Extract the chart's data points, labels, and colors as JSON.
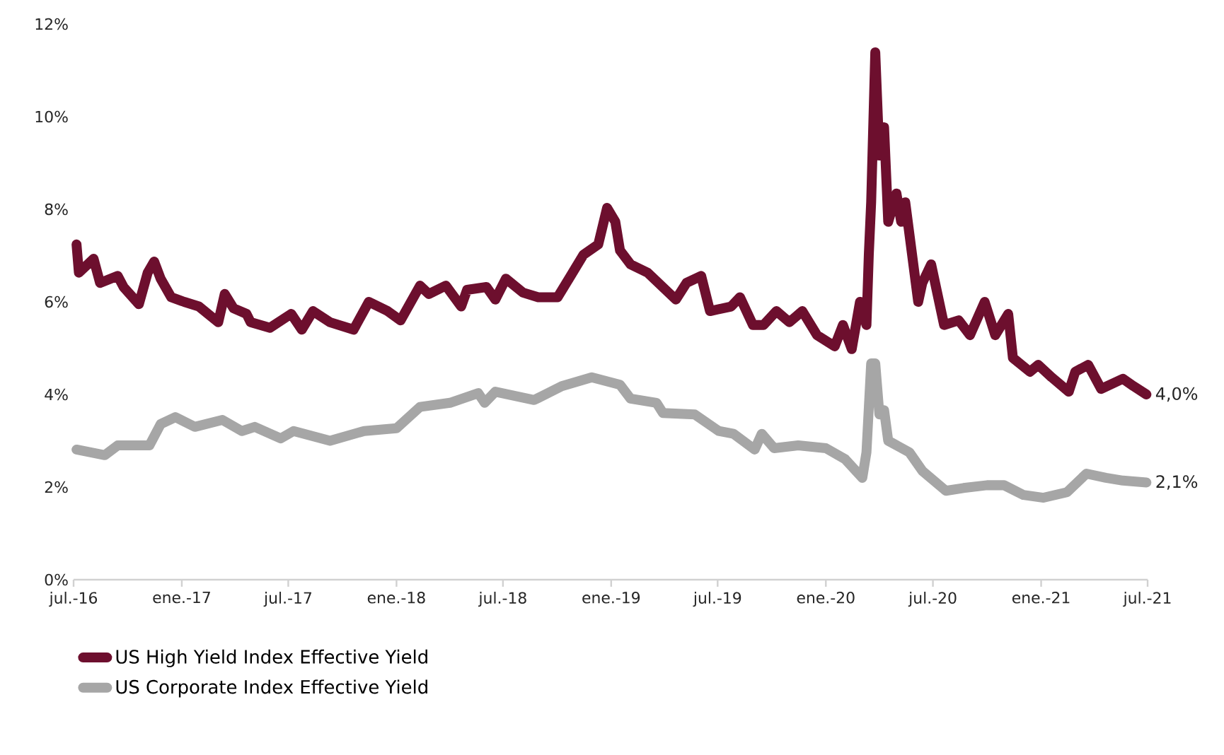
{
  "chart_data": {
    "type": "line",
    "xlim": [
      "2016-07-01",
      "2021-07-01"
    ],
    "xticks": [
      {
        "value": "2016-07-01",
        "label": "jul.-16"
      },
      {
        "value": "2017-01-01",
        "label": "ene.-17"
      },
      {
        "value": "2017-07-01",
        "label": "jul.-17"
      },
      {
        "value": "2018-01-01",
        "label": "ene.-18"
      },
      {
        "value": "2018-07-01",
        "label": "jul.-18"
      },
      {
        "value": "2019-01-01",
        "label": "ene.-19"
      },
      {
        "value": "2019-07-01",
        "label": "jul.-19"
      },
      {
        "value": "2020-01-01",
        "label": "ene.-20"
      },
      {
        "value": "2020-07-01",
        "label": "jul.-20"
      },
      {
        "value": "2021-01-01",
        "label": "ene.-21"
      },
      {
        "value": "2021-07-01",
        "label": "jul.-21"
      }
    ],
    "ylim": [
      0,
      12
    ],
    "yticks": [
      {
        "value": 0,
        "label": "0%"
      },
      {
        "value": 2,
        "label": "2%"
      },
      {
        "value": 4,
        "label": "4%"
      },
      {
        "value": 6,
        "label": "6%"
      },
      {
        "value": 8,
        "label": "8%"
      },
      {
        "value": 10,
        "label": "10%"
      },
      {
        "value": 12,
        "label": "12%"
      }
    ],
    "legend": "bottom",
    "series": [
      {
        "name": "US High Yield Index Effective Yield",
        "color": "#6d0f2e",
        "x": [
          "2016-07-06",
          "2016-07-10",
          "2016-08-04",
          "2016-08-15",
          "2016-09-14",
          "2016-09-24",
          "2016-10-20",
          "2016-11-04",
          "2016-11-15",
          "2016-11-26",
          "2016-12-14",
          "2017-01-05",
          "2017-01-30",
          "2017-03-04",
          "2017-03-15",
          "2017-03-30",
          "2017-04-21",
          "2017-04-28",
          "2017-05-31",
          "2017-07-06",
          "2017-07-24",
          "2017-08-12",
          "2017-09-10",
          "2017-10-20",
          "2017-11-15",
          "2017-12-17",
          "2018-01-08",
          "2018-02-10",
          "2018-02-25",
          "2018-03-26",
          "2018-04-21",
          "2018-05-01",
          "2018-06-03",
          "2018-06-18",
          "2018-07-06",
          "2018-08-04",
          "2018-08-30",
          "2018-10-02",
          "2018-10-24",
          "2018-11-15",
          "2018-12-10",
          "2018-12-25",
          "2019-01-08",
          "2019-01-16",
          "2019-02-03",
          "2019-03-04",
          "2019-04-21",
          "2019-05-09",
          "2019-06-03",
          "2019-06-18",
          "2019-07-24",
          "2019-08-08",
          "2019-08-30",
          "2019-09-17",
          "2019-10-09",
          "2019-10-31",
          "2019-11-22",
          "2019-12-17",
          "2020-01-16",
          "2020-01-30",
          "2020-02-14",
          "2020-02-28",
          "2020-03-10",
          "2020-03-14",
          "2020-03-18",
          "2020-03-25",
          "2020-04-01",
          "2020-04-09",
          "2020-04-16",
          "2020-04-30",
          "2020-05-08",
          "2020-05-15",
          "2020-06-06",
          "2020-06-13",
          "2020-06-28",
          "2020-07-20",
          "2020-08-14",
          "2020-09-02",
          "2020-09-27",
          "2020-10-15",
          "2020-11-06",
          "2020-11-14",
          "2020-12-13",
          "2020-12-27",
          "2021-01-19",
          "2021-02-17",
          "2021-02-28",
          "2021-03-22",
          "2021-04-13",
          "2021-05-20",
          "2021-06-07",
          "2021-06-29"
        ],
        "values": [
          7.24,
          6.63,
          6.93,
          6.41,
          6.56,
          6.32,
          5.95,
          6.63,
          6.87,
          6.5,
          6.1,
          6.0,
          5.9,
          5.56,
          6.17,
          5.86,
          5.74,
          5.56,
          5.44,
          5.74,
          5.4,
          5.8,
          5.56,
          5.4,
          6.0,
          5.8,
          5.6,
          6.35,
          6.17,
          6.35,
          5.9,
          6.26,
          6.32,
          6.05,
          6.5,
          6.2,
          6.1,
          6.1,
          6.56,
          7.02,
          7.24,
          8.03,
          7.73,
          7.11,
          6.81,
          6.63,
          6.05,
          6.41,
          6.56,
          5.8,
          5.9,
          6.1,
          5.5,
          5.5,
          5.8,
          5.56,
          5.8,
          5.28,
          5.04,
          5.5,
          4.98,
          6.0,
          5.5,
          7.02,
          8.15,
          11.39,
          9.16,
          9.77,
          7.73,
          8.34,
          7.73,
          8.15,
          6.0,
          6.41,
          6.81,
          5.5,
          5.6,
          5.28,
          6.0,
          5.28,
          5.74,
          4.79,
          4.49,
          4.64,
          4.37,
          4.06,
          4.49,
          4.64,
          4.12,
          4.34,
          4.18,
          4.0
        ]
      },
      {
        "name": "US Corporate Index Effective Yield",
        "color": "#a6a6a6",
        "x": [
          "2016-07-06",
          "2016-08-23",
          "2016-09-14",
          "2016-11-07",
          "2016-11-26",
          "2016-12-21",
          "2017-01-23",
          "2017-03-11",
          "2017-04-13",
          "2017-05-05",
          "2017-06-18",
          "2017-07-10",
          "2017-09-10",
          "2017-11-07",
          "2018-01-01",
          "2018-02-10",
          "2018-04-02",
          "2018-05-20",
          "2018-05-31",
          "2018-06-18",
          "2018-08-23",
          "2018-10-09",
          "2018-11-29",
          "2019-01-16",
          "2019-02-03",
          "2019-03-19",
          "2019-03-30",
          "2019-05-23",
          "2019-07-03",
          "2019-07-28",
          "2019-09-02",
          "2019-09-14",
          "2019-10-05",
          "2019-11-15",
          "2020-01-01",
          "2020-02-03",
          "2020-03-03",
          "2020-03-10",
          "2020-03-18",
          "2020-03-25",
          "2020-04-01",
          "2020-04-09",
          "2020-04-16",
          "2020-05-22",
          "2020-06-13",
          "2020-07-23",
          "2020-08-22",
          "2020-10-01",
          "2020-10-30",
          "2020-12-02",
          "2021-01-05",
          "2021-02-14",
          "2021-03-19",
          "2021-04-21",
          "2021-05-20",
          "2021-06-29"
        ],
        "values": [
          2.81,
          2.69,
          2.9,
          2.9,
          3.36,
          3.51,
          3.3,
          3.45,
          3.21,
          3.3,
          3.05,
          3.21,
          3.0,
          3.21,
          3.27,
          3.73,
          3.82,
          4.03,
          3.82,
          4.06,
          3.88,
          4.18,
          4.37,
          4.21,
          3.91,
          3.82,
          3.6,
          3.57,
          3.21,
          3.15,
          2.81,
          3.15,
          2.84,
          2.9,
          2.84,
          2.6,
          2.2,
          2.75,
          4.67,
          4.67,
          3.57,
          3.66,
          3.0,
          2.75,
          2.35,
          1.92,
          1.98,
          2.04,
          2.04,
          1.83,
          1.77,
          1.89,
          2.29,
          2.2,
          2.14,
          2.1
        ]
      }
    ],
    "annotations": [
      {
        "text": "4,0%",
        "x": "2021-06-29",
        "y": 4.0
      },
      {
        "text": "2,1%",
        "x": "2021-06-29",
        "y": 2.1
      }
    ]
  }
}
